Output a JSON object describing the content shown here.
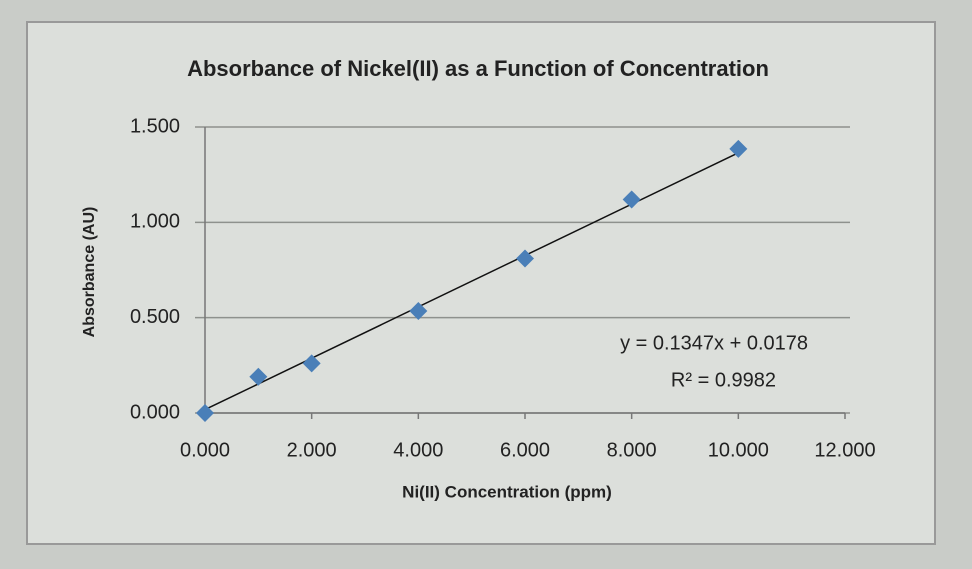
{
  "chart_data": {
    "type": "scatter",
    "title": "Absorbance of Nickel(II) as a Function of Concentration",
    "x_label": "Ni(II) Concentration (ppm)",
    "y_label": "Absorbance (AU)",
    "x": [
      0,
      1,
      2,
      4,
      6,
      8,
      10
    ],
    "values": [
      0,
      0.19,
      0.26,
      0.535,
      0.81,
      1.12,
      1.385
    ],
    "color": "#4a7fb8",
    "xlim": [
      0,
      12
    ],
    "ylim": [
      0,
      1.5
    ],
    "xticks": [
      {
        "value": 0,
        "label": "0.000"
      },
      {
        "value": 2,
        "label": "2.000"
      },
      {
        "value": 4,
        "label": "4.000"
      },
      {
        "value": 6,
        "label": "6.000"
      },
      {
        "value": 8,
        "label": "8.000"
      },
      {
        "value": 10,
        "label": "10.000"
      },
      {
        "value": 12,
        "label": "12.000"
      }
    ],
    "yticks": [
      {
        "value": 0,
        "label": "0.000"
      },
      {
        "value": 0.5,
        "label": "0.500"
      },
      {
        "value": 1,
        "label": "1.000"
      },
      {
        "value": 1.5,
        "label": "1.500"
      }
    ],
    "grid": true,
    "trendline": {
      "slope": 0.1347,
      "intercept": 0.0178,
      "equation": "y = 0.1347x + 0.0178",
      "r_squared": "R² = 0.9982"
    }
  }
}
